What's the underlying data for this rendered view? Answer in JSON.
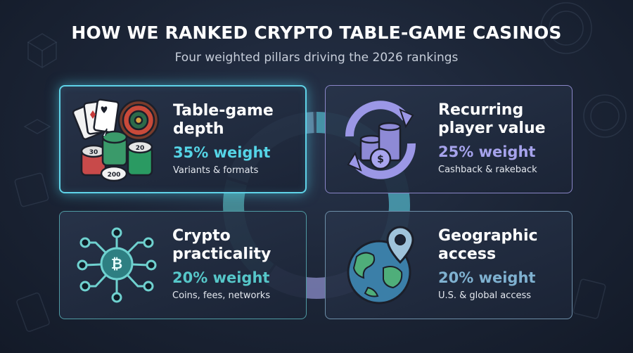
{
  "header": {
    "title": "HOW WE RANKED CRYPTO TABLE-GAME CASINOS",
    "subtitle": "Four weighted pillars driving the 2026 rankings"
  },
  "pillars": [
    {
      "title_line1": "Table-game",
      "title_line2": "depth",
      "weight": "35% weight",
      "desc": "Variants & formats",
      "icon": "casino-chips-cards-roulette-icon",
      "accent": "#55d4e6"
    },
    {
      "title_line1": "Recurring",
      "title_line2": "player value",
      "weight": "25% weight",
      "desc": "Cashback & rakeback",
      "icon": "recurring-coins-icon",
      "accent": "#a6a3ec"
    },
    {
      "title_line1": "Crypto",
      "title_line2": "practicality",
      "weight": "20% weight",
      "desc": "Coins, fees, networks",
      "icon": "bitcoin-network-icon",
      "accent": "#56c7c9"
    },
    {
      "title_line1": "Geographic",
      "title_line2": "access",
      "weight": "20% weight",
      "desc": "U.S. & global access",
      "icon": "globe-location-icon",
      "accent": "#7fb1d0"
    }
  ],
  "chip_labels": [
    "30",
    "20",
    "200"
  ],
  "chart_data": {
    "type": "pie",
    "categories": [
      "Table-game depth",
      "Recurring player value",
      "Crypto practicality",
      "Geographic access"
    ],
    "values": [
      35,
      25,
      20,
      20
    ],
    "title": "",
    "colors": [
      "#55d4e6",
      "#a6a3ec",
      "#56c7c9",
      "#7fb1d0"
    ]
  }
}
